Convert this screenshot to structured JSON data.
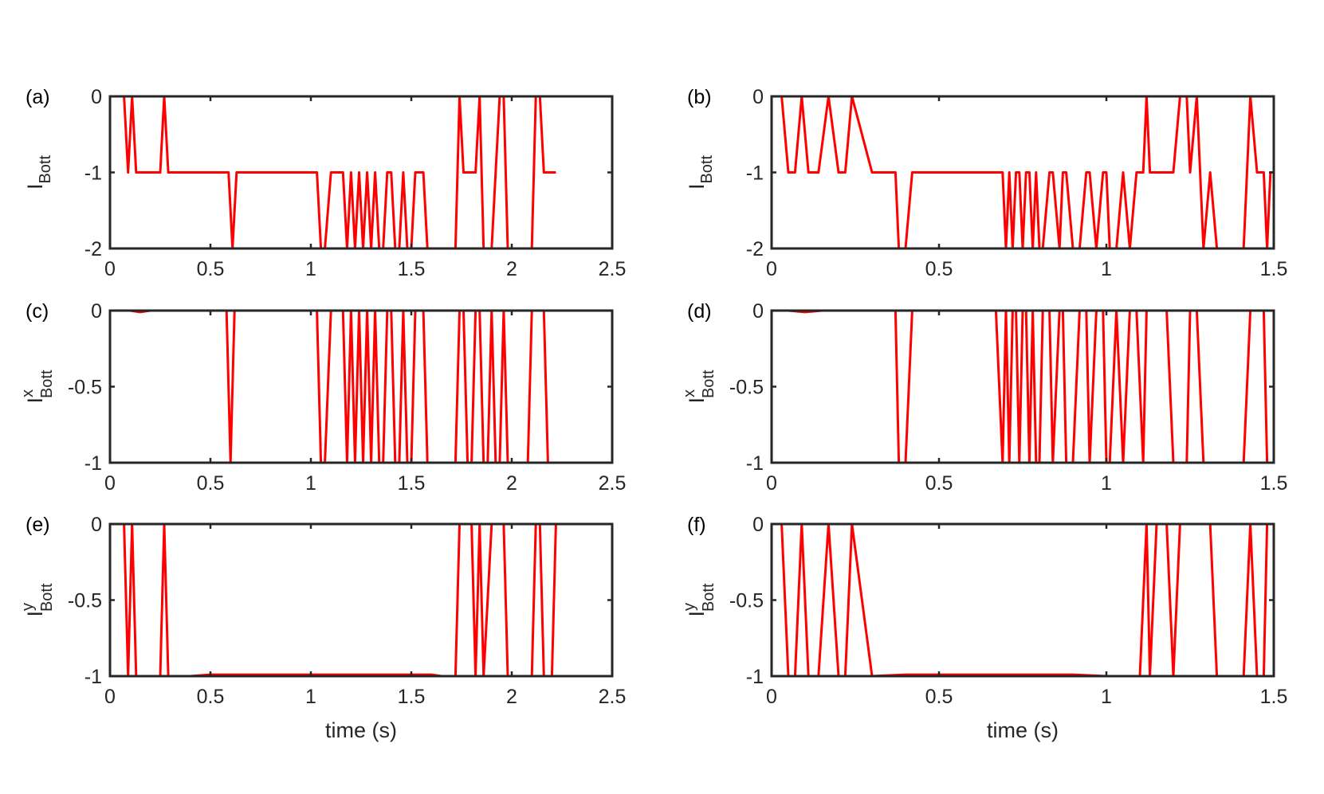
{
  "figure": {
    "line_color": "#ff0000",
    "axis_color": "#262626"
  },
  "chart_data": [
    {
      "id": "a",
      "panel_label": "(a)",
      "type": "line",
      "ylabel": {
        "main": "I",
        "sub": "Bott",
        "sup": ""
      },
      "xlabel": "",
      "xlim": [
        0,
        2.5
      ],
      "ylim": [
        -2,
        0
      ],
      "xticks": [
        0,
        0.5,
        1,
        1.5,
        2,
        2.5
      ],
      "xtick_labels": [
        "0",
        "0.5",
        "1",
        "1.5",
        "2",
        "2.5"
      ],
      "yticks": [
        -2,
        -1,
        0
      ],
      "ytick_labels": [
        "-2",
        "-1",
        "0"
      ],
      "series": [
        {
          "x": [
            0,
            0.07,
            0.09,
            0.11,
            0.13,
            0.15,
            0.2,
            0.25,
            0.27,
            0.29,
            0.35,
            0.45,
            0.55,
            0.59,
            0.61,
            0.63,
            0.7,
            0.8,
            0.9,
            1.0,
            1.03,
            1.05,
            1.07,
            1.1,
            1.14,
            1.16,
            1.18,
            1.2,
            1.22,
            1.24,
            1.26,
            1.28,
            1.3,
            1.32,
            1.34,
            1.36,
            1.38,
            1.4,
            1.42,
            1.44,
            1.46,
            1.48,
            1.5,
            1.52,
            1.54,
            1.56,
            1.58,
            1.6,
            1.62,
            1.65,
            1.7,
            1.72,
            1.74,
            1.76,
            1.8,
            1.82,
            1.84,
            1.86,
            1.9,
            1.92,
            1.94,
            1.96,
            1.98,
            2.0,
            2.02,
            2.04,
            2.06,
            2.08,
            2.1,
            2.12,
            2.14,
            2.16,
            2.18,
            2.2,
            2.22
          ],
          "y": [
            0,
            0,
            -1,
            0,
            -1,
            -1,
            -1,
            -1,
            0,
            -1,
            -1,
            -1,
            -1,
            -1,
            -2,
            -1,
            -1,
            -1,
            -1,
            -1,
            -1,
            -2,
            -2,
            -1,
            -1,
            -1,
            -2,
            -1,
            -2,
            -1,
            -2,
            -1,
            -2,
            -1,
            -2,
            -2,
            -1,
            -1,
            -2,
            -2,
            -1,
            -2,
            -2,
            -1,
            -1,
            -1,
            -2,
            -2,
            -2,
            -2,
            -2,
            -2,
            0,
            -1,
            -1,
            -1,
            0,
            -2,
            -2,
            -1,
            0,
            0,
            -2,
            -2,
            -2,
            -2,
            -2,
            -2,
            -2,
            0,
            0,
            -1,
            -1,
            -1,
            -1
          ]
        }
      ]
    },
    {
      "id": "b",
      "panel_label": "(b)",
      "type": "line",
      "ylabel": {
        "main": "I",
        "sub": "Bott",
        "sup": ""
      },
      "xlabel": "",
      "xlim": [
        0,
        1.5
      ],
      "ylim": [
        -2,
        0
      ],
      "xticks": [
        0,
        0.5,
        1,
        1.5
      ],
      "xtick_labels": [
        "0",
        "0.5",
        "1",
        "1.5"
      ],
      "yticks": [
        -2,
        -1,
        0
      ],
      "ytick_labels": [
        "-2",
        "-1",
        "0"
      ],
      "series": [
        {
          "x": [
            0,
            0.03,
            0.05,
            0.07,
            0.09,
            0.11,
            0.14,
            0.17,
            0.2,
            0.22,
            0.24,
            0.3,
            0.35,
            0.37,
            0.38,
            0.4,
            0.42,
            0.45,
            0.5,
            0.6,
            0.67,
            0.69,
            0.7,
            0.71,
            0.72,
            0.73,
            0.74,
            0.75,
            0.76,
            0.77,
            0.78,
            0.79,
            0.8,
            0.81,
            0.83,
            0.84,
            0.86,
            0.87,
            0.88,
            0.9,
            0.92,
            0.94,
            0.95,
            0.97,
            0.99,
            1.0,
            1.01,
            1.03,
            1.05,
            1.07,
            1.09,
            1.11,
            1.12,
            1.13,
            1.15,
            1.18,
            1.2,
            1.22,
            1.24,
            1.25,
            1.27,
            1.29,
            1.31,
            1.33,
            1.35,
            1.38,
            1.41,
            1.43,
            1.45,
            1.47,
            1.48,
            1.49,
            1.5
          ],
          "y": [
            0,
            0,
            -1,
            -1,
            0,
            -1,
            -1,
            0,
            -1,
            -1,
            0,
            -1,
            -1,
            -1,
            -2,
            -2,
            -1,
            -1,
            -1,
            -1,
            -1,
            -1,
            -2,
            -1,
            -2,
            -1,
            -1,
            -2,
            -1,
            -1,
            -2,
            -1,
            -2,
            -2,
            -1,
            -1,
            -2,
            -1,
            -1,
            -2,
            -2,
            -1,
            -1,
            -2,
            -1,
            -1,
            -2,
            -2,
            -1,
            -2,
            -1,
            -1,
            0,
            -1,
            -1,
            -1,
            -1,
            0,
            0,
            -1,
            0,
            -2,
            -1,
            -2,
            -2,
            -2,
            -2,
            0,
            -1,
            -1,
            -2,
            -1,
            -1
          ]
        }
      ]
    },
    {
      "id": "c",
      "panel_label": "(c)",
      "type": "line",
      "ylabel": {
        "main": "I",
        "sub": "Bott",
        "sup": "x"
      },
      "xlabel": "",
      "xlim": [
        0,
        2.5
      ],
      "ylim": [
        -1,
        0
      ],
      "xticks": [
        0,
        0.5,
        1,
        1.5,
        2,
        2.5
      ],
      "xtick_labels": [
        "0",
        "0.5",
        "1",
        "1.5",
        "2",
        "2.5"
      ],
      "yticks": [
        -1,
        -0.5,
        0
      ],
      "ytick_labels": [
        "-1",
        "-0.5",
        "0"
      ],
      "series": [
        {
          "x": [
            0,
            0.1,
            0.15,
            0.2,
            0.3,
            0.4,
            0.5,
            0.58,
            0.6,
            0.62,
            0.7,
            0.8,
            0.9,
            1.0,
            1.03,
            1.05,
            1.07,
            1.1,
            1.14,
            1.16,
            1.18,
            1.2,
            1.22,
            1.24,
            1.26,
            1.28,
            1.3,
            1.32,
            1.34,
            1.36,
            1.38,
            1.4,
            1.42,
            1.44,
            1.46,
            1.48,
            1.5,
            1.52,
            1.54,
            1.56,
            1.58,
            1.6,
            1.65,
            1.7,
            1.72,
            1.74,
            1.76,
            1.78,
            1.8,
            1.82,
            1.84,
            1.86,
            1.88,
            1.9,
            1.92,
            1.94,
            1.96,
            1.98,
            2.0,
            2.02,
            2.04,
            2.06,
            2.08,
            2.1,
            2.12,
            2.14,
            2.16,
            2.18,
            2.2,
            2.22
          ],
          "y": [
            0,
            0,
            -0.01,
            0,
            0,
            0,
            0,
            0,
            -1,
            0,
            0,
            0,
            0,
            0,
            0,
            -1,
            -1,
            0,
            0,
            0,
            -1,
            0,
            -1,
            0,
            -1,
            0,
            -1,
            0,
            -1,
            -1,
            0,
            0,
            -1,
            -1,
            0,
            -1,
            -1,
            0,
            0,
            0,
            -1,
            -1,
            -1,
            -1,
            -1,
            0,
            0,
            -1,
            -1,
            0,
            0,
            -1,
            -1,
            0,
            -1,
            -1,
            0,
            -1,
            -1,
            -1,
            -1,
            -1,
            -1,
            0,
            0,
            0,
            0,
            -1,
            -1,
            -1
          ]
        }
      ]
    },
    {
      "id": "d",
      "panel_label": "(d)",
      "type": "line",
      "ylabel": {
        "main": "I",
        "sub": "Bott",
        "sup": "x"
      },
      "xlabel": "",
      "xlim": [
        0,
        1.5
      ],
      "ylim": [
        -1,
        0
      ],
      "xticks": [
        0,
        0.5,
        1,
        1.5
      ],
      "xtick_labels": [
        "0",
        "0.5",
        "1",
        "1.5"
      ],
      "yticks": [
        -1,
        -0.5,
        0
      ],
      "ytick_labels": [
        "-1",
        "-0.5",
        "0"
      ],
      "series": [
        {
          "x": [
            0,
            0.05,
            0.1,
            0.15,
            0.2,
            0.25,
            0.3,
            0.35,
            0.37,
            0.38,
            0.4,
            0.42,
            0.45,
            0.5,
            0.6,
            0.67,
            0.69,
            0.7,
            0.71,
            0.72,
            0.73,
            0.74,
            0.75,
            0.76,
            0.77,
            0.78,
            0.79,
            0.8,
            0.81,
            0.83,
            0.84,
            0.86,
            0.87,
            0.88,
            0.9,
            0.92,
            0.94,
            0.95,
            0.97,
            0.99,
            1.0,
            1.01,
            1.03,
            1.05,
            1.07,
            1.09,
            1.11,
            1.12,
            1.13,
            1.15,
            1.18,
            1.2,
            1.22,
            1.24,
            1.25,
            1.27,
            1.29,
            1.31,
            1.33,
            1.35,
            1.38,
            1.41,
            1.43,
            1.45,
            1.47,
            1.48,
            1.49,
            1.5
          ],
          "y": [
            0,
            0,
            -0.01,
            0,
            0,
            0,
            0,
            0,
            0,
            -1,
            -1,
            0,
            0,
            0,
            0,
            0,
            -1,
            0,
            -1,
            0,
            0,
            -1,
            0,
            0,
            -1,
            0,
            -1,
            -1,
            0,
            0,
            -1,
            0,
            0,
            -1,
            -1,
            0,
            0,
            -1,
            0,
            0,
            -1,
            -1,
            0,
            -1,
            0,
            0,
            -1,
            0,
            0,
            0,
            0,
            -1,
            -1,
            -1,
            0,
            0,
            -1,
            -1,
            -1,
            -1,
            -1,
            -1,
            0,
            0,
            0,
            -1,
            -1,
            -1
          ]
        }
      ]
    },
    {
      "id": "e",
      "panel_label": "(e)",
      "type": "line",
      "ylabel": {
        "main": "I",
        "sub": "Bott",
        "sup": "y"
      },
      "xlabel": "time (s)",
      "xlim": [
        0,
        2.5
      ],
      "ylim": [
        -1,
        0
      ],
      "xticks": [
        0,
        0.5,
        1,
        1.5,
        2,
        2.5
      ],
      "xtick_labels": [
        "0",
        "0.5",
        "1",
        "1.5",
        "2",
        "2.5"
      ],
      "yticks": [
        -1,
        -0.5,
        0
      ],
      "ytick_labels": [
        "-1",
        "-0.5",
        "0"
      ],
      "series": [
        {
          "x": [
            0,
            0.07,
            0.09,
            0.11,
            0.13,
            0.15,
            0.2,
            0.25,
            0.27,
            0.29,
            0.4,
            0.5,
            0.6,
            0.7,
            0.8,
            0.9,
            1.0,
            1.1,
            1.2,
            1.3,
            1.4,
            1.5,
            1.6,
            1.65,
            1.7,
            1.72,
            1.74,
            1.76,
            1.8,
            1.82,
            1.84,
            1.86,
            1.9,
            1.92,
            1.94,
            1.96,
            1.98,
            2.0,
            2.02,
            2.04,
            2.06,
            2.08,
            2.1,
            2.12,
            2.14,
            2.16,
            2.18,
            2.2,
            2.22
          ],
          "y": [
            0,
            0,
            -1,
            0,
            -1,
            -1,
            -1,
            -1,
            0,
            -1,
            -1,
            -0.99,
            -0.99,
            -0.99,
            -0.99,
            -0.99,
            -0.99,
            -0.99,
            -0.99,
            -0.99,
            -0.99,
            -0.99,
            -0.99,
            -1,
            -1,
            -1,
            0,
            0,
            0,
            -1,
            0,
            -1,
            0,
            0,
            0,
            0,
            -1,
            -1,
            -1,
            -1,
            -1,
            -1,
            -1,
            0,
            0,
            -1,
            -1,
            -1,
            0
          ]
        }
      ]
    },
    {
      "id": "f",
      "panel_label": "(f)",
      "type": "line",
      "ylabel": {
        "main": "I",
        "sub": "Bott",
        "sup": "y"
      },
      "xlabel": "time (s)",
      "xlim": [
        0,
        1.5
      ],
      "ylim": [
        -1,
        0
      ],
      "xticks": [
        0,
        0.5,
        1,
        1.5
      ],
      "xtick_labels": [
        "0",
        "0.5",
        "1",
        "1.5"
      ],
      "yticks": [
        -1,
        -0.5,
        0
      ],
      "ytick_labels": [
        "-1",
        "-0.5",
        "0"
      ],
      "series": [
        {
          "x": [
            0,
            0.03,
            0.05,
            0.07,
            0.09,
            0.11,
            0.14,
            0.17,
            0.2,
            0.22,
            0.24,
            0.3,
            0.4,
            0.5,
            0.6,
            0.7,
            0.8,
            0.9,
            1.0,
            1.05,
            1.1,
            1.12,
            1.13,
            1.15,
            1.18,
            1.2,
            1.22,
            1.24,
            1.25,
            1.27,
            1.29,
            1.31,
            1.33,
            1.35,
            1.38,
            1.41,
            1.43,
            1.45,
            1.47,
            1.48,
            1.49,
            1.5
          ],
          "y": [
            0,
            0,
            -1,
            -1,
            0,
            -1,
            -1,
            0,
            -1,
            -1,
            0,
            -1,
            -0.99,
            -0.99,
            -0.99,
            -0.99,
            -0.99,
            -0.99,
            -1,
            -1,
            -1,
            0,
            -1,
            0,
            0,
            -1,
            0,
            0,
            0,
            0,
            0,
            0,
            -1,
            -1,
            -1,
            -1,
            0,
            -1,
            -1,
            0,
            0,
            0
          ]
        }
      ]
    }
  ]
}
